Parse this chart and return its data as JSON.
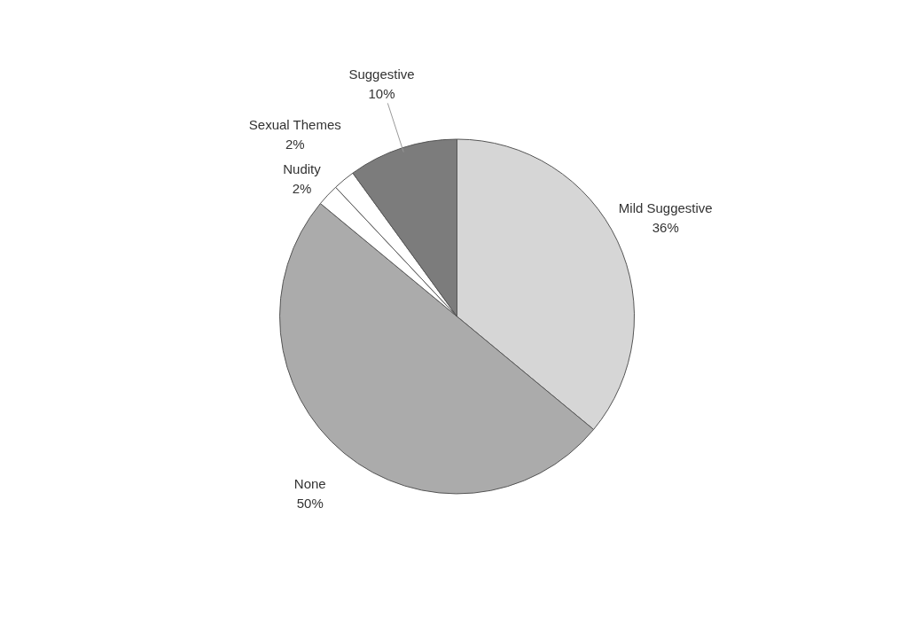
{
  "chart_data": {
    "type": "pie",
    "categories": [
      "Mild Suggestive",
      "None",
      "Nudity",
      "Sexual Themes",
      "Suggestive"
    ],
    "values": [
      36,
      50,
      2,
      2,
      10
    ],
    "value_labels": [
      "36%",
      "50%",
      "2%",
      "2%",
      "10%"
    ],
    "colors": [
      "#d6d6d6",
      "#ababab",
      "#ffffff",
      "#ffffff",
      "#7c7c7c"
    ]
  }
}
